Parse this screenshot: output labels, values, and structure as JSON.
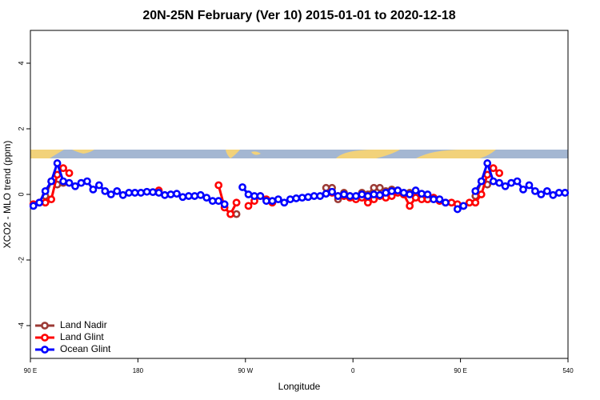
{
  "chart_data": {
    "type": "line",
    "title": "20N-25N February (Ver 10)   2015-01-01 to 2020-12-18",
    "x_label": "Longitude",
    "y_label": "XCO2 - MLO trend (ppm)",
    "xlim": [
      90,
      540
    ],
    "ylim": [
      -5,
      5
    ],
    "xticks": [
      {
        "value": 90,
        "label": "90 E"
      },
      180,
      {
        "value": 270,
        "label": "90 W"
      },
      {
        "value": 360,
        "label": "0"
      },
      {
        "value": 450,
        "label": "90 E"
      },
      540
    ],
    "yticks": [
      -4,
      -2,
      0,
      2,
      4
    ],
    "legend": "bottom-left",
    "x": [
      92.5,
      97.5,
      102.5,
      107.5,
      112.5,
      117.5,
      122.5,
      127.5,
      132.5,
      137.5,
      142.5,
      147.5,
      152.5,
      157.5,
      162.5,
      167.5,
      172.5,
      177.5,
      182.5,
      187.5,
      192.5,
      197.5,
      202.5,
      207.5,
      212.5,
      217.5,
      222.5,
      227.5,
      232.5,
      237.5,
      242.5,
      247.5,
      252.5,
      257.5,
      262.5,
      267.5,
      272.5,
      277.5,
      282.5,
      287.5,
      292.5,
      297.5,
      302.5,
      307.5,
      312.5,
      317.5,
      322.5,
      327.5,
      332.5,
      337.5,
      342.5,
      347.5,
      352.5,
      357.5,
      362.5,
      367.5,
      372.5,
      377.5,
      382.5,
      387.5,
      392.5,
      397.5,
      402.5,
      407.5,
      412.5,
      417.5,
      422.5,
      427.5,
      432.5,
      437.5,
      442.5,
      447.5,
      452.5,
      457.5,
      462.5,
      467.5,
      472.5,
      477.5,
      482.5,
      487.5,
      492.5,
      497.5,
      502.5,
      507.5,
      512.5,
      517.5,
      522.5,
      527.5,
      532.5,
      537.5
    ],
    "series": [
      {
        "name": "Land Nadir",
        "color": "#9c3b36",
        "values": [
          null,
          null,
          -0.05,
          0.4,
          0.3,
          0.35,
          null,
          null,
          null,
          null,
          null,
          null,
          null,
          null,
          null,
          null,
          null,
          null,
          null,
          null,
          null,
          null,
          null,
          null,
          null,
          null,
          null,
          null,
          null,
          null,
          null,
          null,
          null,
          -0.6,
          -0.6,
          null,
          null,
          null,
          null,
          null,
          null,
          null,
          null,
          null,
          null,
          null,
          null,
          null,
          null,
          0.2,
          0.2,
          -0.15,
          0.05,
          -0.05,
          null,
          0.05,
          0.0,
          0.2,
          0.2,
          0.1,
          0.15,
          0.12,
          0.0,
          0.05,
          0.0,
          -0.1,
          -0.15,
          -0.1,
          null,
          null,
          null,
          null,
          null,
          null,
          -0.05,
          0.4,
          0.3,
          null,
          null,
          null,
          null,
          null,
          null,
          null,
          null,
          null,
          null,
          null,
          null,
          null
        ]
      },
      {
        "name": "Land Glint",
        "color": "#ff0000",
        "values": [
          -0.3,
          -0.25,
          -0.25,
          -0.15,
          0.6,
          0.8,
          0.65,
          null,
          null,
          null,
          null,
          null,
          null,
          null,
          null,
          null,
          null,
          null,
          null,
          null,
          null,
          0.12,
          null,
          null,
          null,
          null,
          null,
          null,
          null,
          null,
          null,
          0.28,
          -0.4,
          -0.6,
          -0.25,
          null,
          -0.35,
          -0.2,
          -0.05,
          -0.15,
          -0.25,
          null,
          null,
          null,
          null,
          null,
          null,
          null,
          null,
          null,
          0.05,
          -0.05,
          -0.05,
          -0.1,
          -0.15,
          -0.1,
          -0.25,
          -0.15,
          -0.05,
          -0.1,
          -0.05,
          0.05,
          0.0,
          -0.35,
          -0.1,
          -0.15,
          -0.15,
          -0.1,
          -0.2,
          -0.25,
          -0.25,
          -0.3,
          -0.35,
          -0.25,
          -0.25,
          0.0,
          0.6,
          0.8,
          0.65,
          null,
          null,
          null,
          null,
          null,
          null,
          null,
          null,
          null,
          null,
          null
        ]
      },
      {
        "name": "Ocean Glint",
        "color": "#0000ff",
        "values": [
          -0.35,
          -0.25,
          0.1,
          0.4,
          0.95,
          0.4,
          0.35,
          0.25,
          0.35,
          0.4,
          0.15,
          0.28,
          0.1,
          0.0,
          0.1,
          -0.02,
          0.05,
          0.05,
          0.05,
          0.08,
          0.07,
          0.05,
          -0.02,
          0.0,
          0.02,
          -0.08,
          -0.05,
          -0.05,
          -0.02,
          -0.1,
          -0.2,
          -0.2,
          -0.3,
          null,
          null,
          0.22,
          0.0,
          -0.05,
          -0.05,
          -0.2,
          -0.2,
          -0.15,
          -0.25,
          -0.15,
          -0.12,
          -0.1,
          -0.08,
          -0.05,
          -0.05,
          0.02,
          0.08,
          -0.05,
          0.0,
          -0.05,
          -0.05,
          0.0,
          -0.05,
          0.0,
          -0.02,
          0.05,
          0.1,
          0.12,
          0.05,
          0.0,
          0.12,
          0.02,
          0.0,
          -0.15,
          -0.15,
          -0.25,
          null,
          -0.45,
          -0.35,
          null,
          0.1,
          0.4,
          0.95,
          0.4,
          0.35,
          0.25,
          0.35,
          0.4,
          0.15,
          0.28,
          0.1,
          0.0,
          0.1,
          -0.02,
          0.05,
          0.05
        ]
      }
    ]
  }
}
